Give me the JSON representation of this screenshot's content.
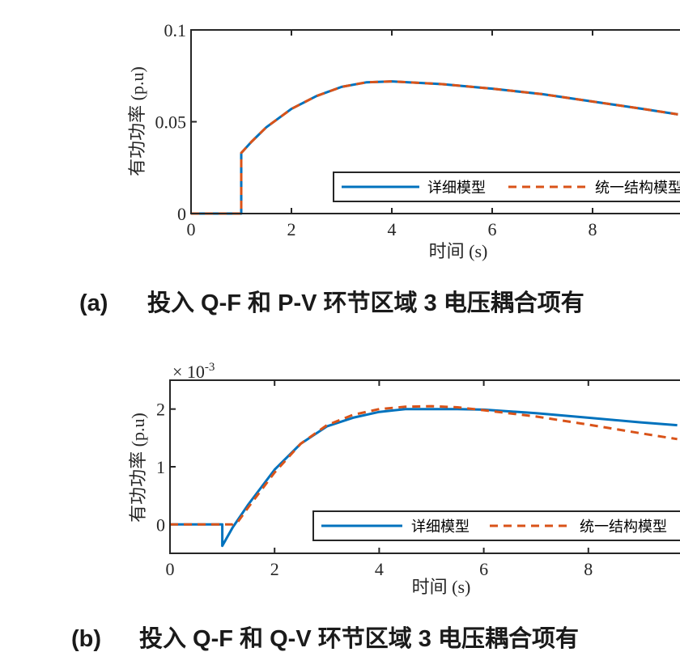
{
  "chart_data": [
    {
      "type": "line",
      "id": "a",
      "xlim": [
        0,
        10
      ],
      "ylim": [
        0,
        0.1
      ],
      "xticks": [
        0,
        2,
        4,
        6,
        8
      ],
      "yticks": [
        0,
        0.05,
        0.1
      ],
      "yticklabels": [
        "0",
        "0.05",
        "0.1"
      ],
      "xlabel": "时间 (s)",
      "ylabel": "有功功率 (p.u)",
      "legend_position": "lower-right",
      "series": [
        {
          "name": "详细模型",
          "color": "#0072BD",
          "style": "solid",
          "x": [
            0,
            1,
            1,
            1.2,
            1.5,
            2,
            2.5,
            3,
            3.5,
            4,
            5,
            6,
            7,
            8,
            9,
            9.7
          ],
          "y": [
            0,
            0,
            0.033,
            0.039,
            0.047,
            0.057,
            0.064,
            0.069,
            0.0715,
            0.072,
            0.0705,
            0.068,
            0.065,
            0.061,
            0.057,
            0.054
          ]
        },
        {
          "name": "统一结构模型",
          "color": "#D95319",
          "style": "dashed",
          "x": [
            0,
            1,
            1,
            1.2,
            1.5,
            2,
            2.5,
            3,
            3.5,
            4,
            5,
            6,
            7,
            8,
            9,
            9.7
          ],
          "y": [
            0,
            0,
            0.033,
            0.039,
            0.047,
            0.057,
            0.064,
            0.069,
            0.0715,
            0.072,
            0.0705,
            0.068,
            0.065,
            0.061,
            0.057,
            0.054
          ]
        }
      ],
      "caption": {
        "label": "(a)",
        "text": "投入 Q-F 和 P-V 环节区域 3 电压耦合项有"
      }
    },
    {
      "type": "line",
      "id": "b",
      "xlim": [
        0,
        10
      ],
      "ylim": [
        -0.0005,
        0.0025
      ],
      "xticks": [
        0,
        2,
        4,
        6,
        8
      ],
      "yticks": [
        0,
        0.001,
        0.002
      ],
      "yticklabels": [
        "0",
        "1",
        "2"
      ],
      "exponent_label": "× 10",
      "exponent_power": "-3",
      "xlabel": "时间 (s)",
      "ylabel": "有功功率 (p.u)",
      "legend_position": "lower-right",
      "series": [
        {
          "name": "详细模型",
          "color": "#0072BD",
          "style": "solid",
          "x": [
            0,
            1,
            1,
            1.2,
            1.5,
            2,
            2.5,
            3,
            3.5,
            4,
            4.5,
            5,
            5.5,
            6,
            7,
            8,
            9,
            9.7
          ],
          "y": [
            0,
            0,
            -0.00037,
            -5e-05,
            0.00035,
            0.00095,
            0.0014,
            0.0017,
            0.00185,
            0.00195,
            0.002,
            0.002,
            0.002,
            0.00199,
            0.00193,
            0.00185,
            0.00177,
            0.00172
          ]
        },
        {
          "name": "统一结构模型",
          "color": "#D95319",
          "style": "dashed",
          "x": [
            0,
            1,
            1.2,
            1.3,
            1.5,
            2,
            2.5,
            3,
            3.5,
            4,
            4.5,
            5,
            5.5,
            6,
            7,
            8,
            9,
            9.7
          ],
          "y": [
            0,
            0,
            0,
            5e-05,
            0.0003,
            0.0009,
            0.0014,
            0.00172,
            0.0019,
            0.002,
            0.00204,
            0.00205,
            0.00203,
            0.00198,
            0.00187,
            0.00173,
            0.00158,
            0.00148
          ]
        }
      ],
      "caption": {
        "label": "(b)",
        "text": "投入 Q-F 和 Q-V 环节区域 3 电压耦合项有"
      }
    }
  ]
}
